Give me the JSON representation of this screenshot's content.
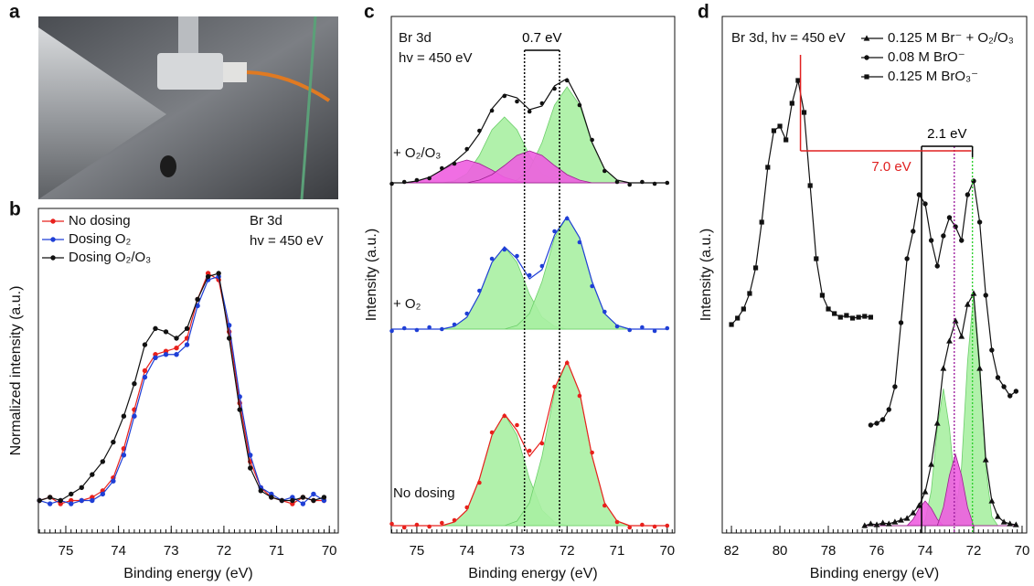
{
  "photo": {
    "panel": "a"
  },
  "chart_data": [
    {
      "panel": "b",
      "type": "line",
      "xlabel": "Binding energy (eV)",
      "ylabel": "Normalized intensity (a.u.)",
      "xlim": [
        75.52,
        69.83
      ],
      "xticks": [
        75,
        74,
        73,
        72,
        71,
        70
      ],
      "xminor_step": 0.1,
      "ylim": [
        0,
        1
      ],
      "legend": "upper left",
      "annotations": [
        {
          "text": "Br 3d"
        },
        {
          "text": "hv = 450 eV"
        }
      ],
      "x": [
        75.5,
        75.3,
        75.1,
        74.9,
        74.7,
        74.5,
        74.3,
        74.1,
        73.9,
        73.7,
        73.5,
        73.3,
        73.1,
        72.9,
        72.7,
        72.5,
        72.3,
        72.1,
        71.9,
        71.7,
        71.5,
        71.3,
        71.1,
        70.9,
        70.7,
        70.5,
        70.3,
        70.1
      ],
      "series": [
        {
          "name": "No dosing",
          "color": "#e8201c",
          "marker": "circle",
          "line": true,
          "values": [
            0.1,
            0.11,
            0.09,
            0.1,
            0.1,
            0.11,
            0.13,
            0.17,
            0.26,
            0.38,
            0.5,
            0.55,
            0.56,
            0.57,
            0.6,
            0.72,
            0.8,
            0.78,
            0.62,
            0.4,
            0.22,
            0.14,
            0.11,
            0.1,
            0.09,
            0.11,
            0.1,
            0.1
          ]
        },
        {
          "name": "Dosing O₂",
          "color": "#1f3fd6",
          "marker": "circle",
          "line": true,
          "values": [
            0.1,
            0.09,
            0.1,
            0.09,
            0.1,
            0.1,
            0.12,
            0.16,
            0.24,
            0.36,
            0.48,
            0.54,
            0.55,
            0.55,
            0.58,
            0.7,
            0.78,
            0.79,
            0.64,
            0.42,
            0.24,
            0.14,
            0.12,
            0.1,
            0.11,
            0.09,
            0.12,
            0.1
          ]
        },
        {
          "name": "Dosing O₂/O₃",
          "color": "#111111",
          "marker": "circle",
          "line": true,
          "values": [
            0.1,
            0.11,
            0.1,
            0.12,
            0.14,
            0.18,
            0.22,
            0.28,
            0.36,
            0.46,
            0.58,
            0.63,
            0.62,
            0.6,
            0.63,
            0.72,
            0.79,
            0.8,
            0.6,
            0.38,
            0.2,
            0.13,
            0.11,
            0.1,
            0.1,
            0.11,
            0.1,
            0.11
          ]
        }
      ]
    },
    {
      "panel": "c",
      "type": "line",
      "xlabel": "Binding energy (eV)",
      "ylabel": "Intensity (a.u.)",
      "xlim": [
        75.51,
        69.85
      ],
      "xticks": [
        75,
        74,
        73,
        72,
        71,
        70
      ],
      "xminor_step": 0.1,
      "ylim": [
        0,
        565
      ],
      "annotations": [
        {
          "text": "Br 3d"
        },
        {
          "text": "hv = 450 eV"
        },
        {
          "text": "+ O₂/O₃"
        },
        {
          "text": "+ O₂"
        },
        {
          "text": "No dosing"
        }
      ],
      "brackets": [
        {
          "from": 72.85,
          "to": 72.15,
          "label": "0.7 eV",
          "color": "#000000",
          "dash": true
        }
      ],
      "x": [
        75.5,
        75.25,
        75,
        74.75,
        74.5,
        74.25,
        74,
        73.75,
        73.5,
        73.25,
        73,
        72.75,
        72.5,
        72.25,
        72,
        71.75,
        71.5,
        71.25,
        71,
        70.75,
        70.5,
        70.25,
        70
      ],
      "series": [
        {
          "area": true,
          "color": "#6ccf6a",
          "fill": "#a8f0a2",
          "values": [
            383,
            383,
            383,
            383,
            383,
            385,
            393,
            413,
            441,
            455,
            441,
            413,
            393,
            385,
            383,
            383,
            383,
            383,
            383,
            383,
            383,
            383,
            383
          ]
        },
        {
          "area": true,
          "color": "#6ccf6a",
          "fill": "#a8f0a2",
          "values": [
            383,
            383,
            383,
            383,
            383,
            383,
            383,
            383,
            383,
            383,
            386,
            398,
            427,
            468,
            488,
            468,
            427,
            398,
            386,
            383,
            383,
            383,
            383
          ]
        },
        {
          "area": true,
          "color": "#9c2090",
          "fill": "#ee5ee0",
          "values": [
            383,
            383,
            385,
            389,
            397,
            404,
            408,
            404,
            397,
            389,
            385,
            383,
            383,
            383,
            383,
            383,
            383,
            383,
            383,
            383,
            383,
            383,
            383
          ]
        },
        {
          "area": true,
          "color": "#9c2090",
          "fill": "#ee5ee0",
          "values": [
            383,
            383,
            383,
            383,
            383,
            383,
            383,
            386,
            392,
            402,
            413,
            418,
            413,
            402,
            392,
            386,
            383,
            383,
            383,
            383,
            383,
            383,
            383
          ]
        },
        {
          "line": true,
          "color": "#111111",
          "values": [
            383,
            383,
            385,
            389,
            397,
            406,
            418,
            437,
            464,
            480,
            476,
            463,
            467,
            489,
            497,
            471,
            427,
            398,
            386,
            383,
            383,
            383,
            383
          ]
        },
        {
          "marker": "dot",
          "color": "#111111",
          "values": [
            382,
            384,
            386,
            388,
            399,
            404,
            420,
            440,
            462,
            478,
            472,
            461,
            470,
            486,
            495,
            468,
            430,
            396,
            384,
            381,
            384,
            382,
            383
          ]
        },
        {
          "area": true,
          "color": "#6ccf6a",
          "fill": "#a8f0a2",
          "values": [
            223,
            223,
            223,
            223,
            223,
            226,
            236,
            261,
            296,
            313,
            296,
            261,
            236,
            226,
            223,
            223,
            223,
            223,
            223,
            223,
            223,
            223,
            223
          ]
        },
        {
          "area": true,
          "color": "#6ccf6a",
          "fill": "#a8f0a2",
          "values": [
            223,
            223,
            223,
            223,
            223,
            223,
            223,
            223,
            223,
            223,
            227,
            240,
            275,
            323,
            346,
            323,
            275,
            240,
            227,
            223,
            223,
            223,
            223
          ]
        },
        {
          "line": true,
          "color": "#1f3fd6",
          "values": [
            223,
            223,
            223,
            223,
            223,
            226,
            236,
            261,
            296,
            313,
            300,
            278,
            288,
            326,
            346,
            323,
            275,
            240,
            227,
            223,
            223,
            223,
            223
          ]
        },
        {
          "marker": "dot",
          "color": "#1f3fd6",
          "values": [
            221,
            224,
            222,
            225,
            223,
            228,
            240,
            265,
            300,
            310,
            303,
            282,
            292,
            330,
            344,
            318,
            270,
            242,
            226,
            222,
            225,
            221,
            224
          ]
        },
        {
          "area": true,
          "color": "#6ccf6a",
          "fill": "#a8f0a2",
          "values": [
            8,
            8,
            8,
            8,
            8,
            12,
            25,
            59,
            107,
            130,
            107,
            59,
            25,
            12,
            8,
            8,
            8,
            8,
            8,
            8,
            8,
            8,
            8
          ]
        },
        {
          "area": true,
          "color": "#6ccf6a",
          "fill": "#a8f0a2",
          "values": [
            8,
            8,
            8,
            8,
            8,
            8,
            8,
            8,
            8,
            8,
            13,
            33,
            84,
            154,
            188,
            154,
            84,
            33,
            13,
            8,
            8,
            8,
            8
          ]
        },
        {
          "line": true,
          "color": "#e8201c",
          "values": [
            8,
            8,
            8,
            8,
            8,
            12,
            25,
            59,
            107,
            130,
            112,
            84,
            101,
            158,
            188,
            154,
            84,
            33,
            13,
            8,
            8,
            8,
            8
          ]
        },
        {
          "marker": "dot",
          "color": "#e8201c",
          "values": [
            10,
            6,
            9,
            7,
            11,
            14,
            28,
            55,
            110,
            128,
            118,
            90,
            98,
            160,
            186,
            150,
            88,
            30,
            12,
            6,
            9,
            7,
            8
          ]
        }
      ]
    },
    {
      "panel": "d",
      "type": "line",
      "xlabel": "Binding energy (eV)",
      "ylabel": "Intensity (a.u.)",
      "xlim": [
        82.38,
        69.81
      ],
      "xticks": [
        82,
        80,
        78,
        76,
        74,
        72,
        70
      ],
      "xminor_step": 0.2,
      "ylim": [
        0,
        565
      ],
      "legend": "upper right",
      "annotations": [
        {
          "text": "Br 3d, hv = 450 eV"
        }
      ],
      "brackets": [
        {
          "from": 74.15,
          "to": 72.05,
          "label": "2.1 eV",
          "color": "#000000",
          "dash": false
        },
        {
          "from": 79.15,
          "to": 72.1,
          "label": "7.0 eV",
          "color": "#e02020",
          "dash": false
        }
      ],
      "vlines": [
        {
          "x": 72.8,
          "color": "#a020a0",
          "dash": true
        },
        {
          "x": 72.05,
          "color": "#30d030",
          "dash": true
        }
      ],
      "x": [
        76.5,
        76.25,
        76,
        75.75,
        75.5,
        75.25,
        75,
        74.75,
        74.5,
        74.25,
        74,
        73.75,
        73.5,
        73.25,
        73,
        72.75,
        72.5,
        72.25,
        72,
        71.75,
        71.5,
        71.25,
        71,
        70.75,
        70.5,
        70.25
      ],
      "series": [
        {
          "name": "0.125 M Br⁻ + O₂/O₃",
          "color": "#111111",
          "marker": "triangle",
          "line": true,
          "values": [
            8,
            10,
            9,
            11,
            10,
            12,
            14,
            16,
            22,
            30,
            45,
            75,
            120,
            180,
            210,
            232,
            215,
            250,
            262,
            180,
            80,
            35,
            18,
            12,
            10,
            9
          ]
        },
        {
          "name": "0.08 M BrO⁻",
          "color": "#111111",
          "marker": "circle",
          "line": true,
          "x": [
            76.25,
            76,
            75.75,
            75.5,
            75.25,
            75,
            74.75,
            74.5,
            74.25,
            74,
            73.75,
            73.5,
            73.25,
            73,
            72.75,
            72.5,
            72.25,
            72,
            71.75,
            71.5,
            71.25,
            71,
            70.75,
            70.5,
            70.25
          ],
          "values": [
            118,
            120,
            124,
            135,
            160,
            230,
            300,
            330,
            370,
            360,
            320,
            292,
            325,
            345,
            335,
            320,
            370,
            385,
            340,
            260,
            200,
            170,
            160,
            150,
            155
          ]
        },
        {
          "name": "0.125 M BrO₃⁻",
          "color": "#111111",
          "marker": "square",
          "line": true,
          "x": [
            82,
            81.75,
            81.5,
            81.25,
            81,
            80.75,
            80.5,
            80.25,
            80,
            79.75,
            79.5,
            79.25,
            79,
            78.75,
            78.5,
            78.25,
            78,
            77.75,
            77.5,
            77.25,
            77,
            76.75,
            76.5,
            76.25
          ],
          "values": [
            228,
            235,
            245,
            262,
            290,
            340,
            400,
            440,
            445,
            430,
            470,
            495,
            460,
            380,
            300,
            260,
            245,
            240,
            236,
            238,
            235,
            236,
            237,
            236
          ]
        },
        {
          "area": true,
          "color": "#6ccf6a",
          "fill": "#a8f0a2",
          "values": [
            8,
            8,
            8,
            8,
            8,
            8,
            8,
            8,
            8,
            8,
            14,
            46,
            115,
            158,
            115,
            46,
            14,
            8,
            8,
            8,
            8,
            8,
            8,
            8,
            8,
            8
          ]
        },
        {
          "area": true,
          "color": "#6ccf6a",
          "fill": "#a8f0a2",
          "values": [
            8,
            8,
            8,
            8,
            8,
            8,
            8,
            8,
            8,
            8,
            8,
            8,
            8,
            8,
            8,
            18,
            72,
            188,
            262,
            188,
            72,
            18,
            8,
            8,
            8,
            8
          ]
        },
        {
          "area": true,
          "color": "#9c2090",
          "fill": "#ee5ee0",
          "values": [
            8,
            8,
            8,
            8,
            8,
            8,
            8,
            8,
            15,
            27,
            35,
            27,
            15,
            8,
            8,
            8,
            8,
            8,
            8,
            8,
            8,
            8,
            8,
            8,
            8,
            8
          ]
        },
        {
          "area": true,
          "color": "#9c2090",
          "fill": "#ee5ee0",
          "values": [
            8,
            8,
            8,
            8,
            8,
            8,
            8,
            8,
            8,
            8,
            8,
            8,
            8,
            28,
            63,
            86,
            63,
            28,
            8,
            8,
            8,
            8,
            8,
            8,
            8,
            8
          ]
        }
      ]
    }
  ]
}
